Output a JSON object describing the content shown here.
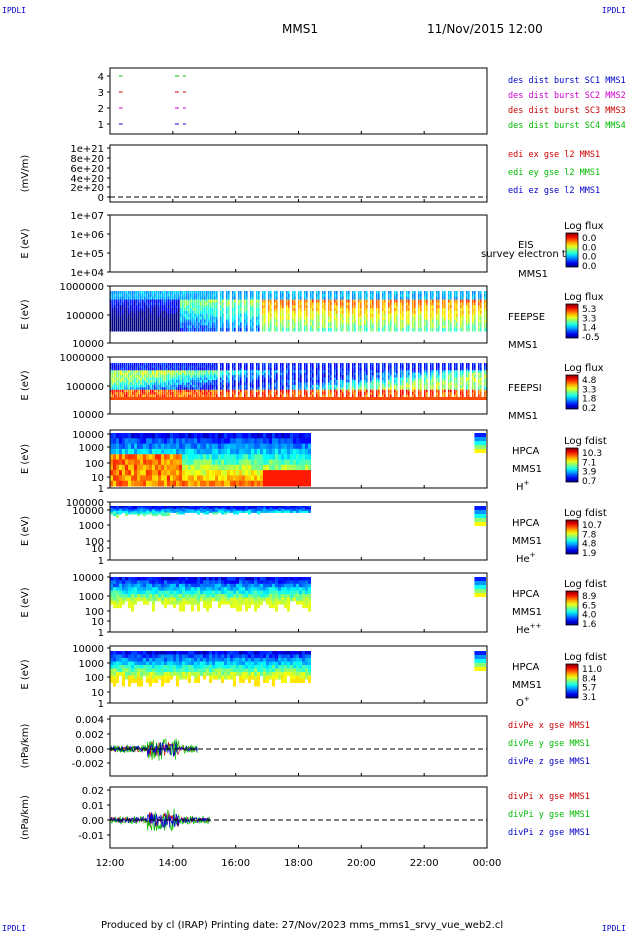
{
  "header": {
    "corner_tl": "IPDLI",
    "corner_tr": "IPDLI",
    "corner_bl": "IPDLI",
    "corner_br": "IPDLI",
    "spacecraft": "MMS1",
    "datetime": "11/Nov/2015 12:00"
  },
  "footer": {
    "text": "Produced by cl (IRAP)   Printing date: 27/Nov/2023   mms_mms1_srvy_vue_web2.cl"
  },
  "chart_data": [
    {
      "type": "line",
      "panel": "burst",
      "yticks": [
        "4",
        "3",
        "2",
        "1"
      ],
      "ylim": [
        0.5,
        4.5
      ],
      "legend": [
        {
          "label": "des dist burst SC1 MMS1",
          "color": "#0000cc"
        },
        {
          "label": "des dist burst SC2 MMS2",
          "color": "#cc00cc"
        },
        {
          "label": "des dist burst SC3 MMS3",
          "color": "#cc0000"
        },
        {
          "label": "des dist burst SC4 MMS4",
          "color": "#00bb00"
        }
      ],
      "series": [
        {
          "name": "des dist burst SC1 MMS1",
          "y": 1,
          "intervals": [
            [
              "12:17",
              "12:24"
            ],
            [
              "14:04",
              "14:25"
            ]
          ]
        },
        {
          "name": "des dist burst SC2 MMS2",
          "y": 2,
          "intervals": [
            [
              "12:17",
              "12:24"
            ],
            [
              "14:04",
              "14:25"
            ]
          ]
        },
        {
          "name": "des dist burst SC3 MMS3",
          "y": 3,
          "intervals": [
            [
              "12:17",
              "12:24"
            ],
            [
              "14:04",
              "14:25"
            ]
          ]
        },
        {
          "name": "des dist burst SC4 MMS4",
          "y": 4,
          "intervals": [
            [
              "12:17",
              "12:24"
            ],
            [
              "14:04",
              "14:25"
            ]
          ]
        }
      ]
    },
    {
      "type": "line",
      "panel": "edi",
      "ylabel": "(mV/m)",
      "yticks": [
        "1e+21",
        "8e+20",
        "6e+20",
        "4e+20",
        "2e+20",
        "0"
      ],
      "ylim": [
        0,
        1e+21
      ],
      "legend": [
        {
          "label": "edi ex gse l2 MMS1",
          "color": "#cc0000"
        },
        {
          "label": "edi ey gse l2 MMS1",
          "color": "#00bb00"
        },
        {
          "label": "edi ez gse l2 MMS1",
          "color": "#0000cc"
        }
      ]
    },
    {
      "type": "heatmap",
      "panel": "eis",
      "ylabel": "E (eV)",
      "yticks": [
        "1e+07",
        "1e+06",
        "1e+05",
        "1e+04"
      ],
      "ylog": true,
      "ylim": [
        10000.0,
        10000000.0
      ],
      "labels": [
        "EIS",
        "MMS1"
      ],
      "overlay_label": "survey electron to",
      "colorbar": {
        "title": "Log flux",
        "ticks": [
          "0.0",
          "0.0",
          "0.0",
          "0.0"
        ]
      }
    },
    {
      "type": "heatmap",
      "panel": "feeps_e",
      "ylabel": "E (eV)",
      "yticks": [
        "1000000",
        "100000",
        "10000"
      ],
      "ylog": true,
      "ylim": [
        10000.0,
        1000000.0
      ],
      "labels": [
        "FEEPSE",
        "MMS1"
      ],
      "colorbar": {
        "title": "Log flux",
        "ticks": [
          "5.3",
          "3.3",
          "1.4",
          "-0.5"
        ]
      }
    },
    {
      "type": "heatmap",
      "panel": "feeps_i",
      "ylabel": "E (eV)",
      "yticks": [
        "1000000",
        "100000",
        "10000"
      ],
      "ylog": true,
      "ylim": [
        10000.0,
        1000000.0
      ],
      "labels": [
        "FEEPSI",
        "MMS1"
      ],
      "colorbar": {
        "title": "Log flux",
        "ticks": [
          "4.8",
          "3.3",
          "1.8",
          "0.2"
        ]
      }
    },
    {
      "type": "heatmap",
      "panel": "hpca_h",
      "ylabel": "E (eV)",
      "yticks": [
        "10000",
        "1000",
        "100",
        "10",
        "1"
      ],
      "ylog": true,
      "ylim": [
        1,
        30000
      ],
      "labels": [
        "HPCA",
        "MMS1"
      ],
      "species": "H",
      "species_sup": "+",
      "colorbar": {
        "title": "Log fdist",
        "ticks": [
          "10.3",
          "7.1",
          "3.9",
          "0.7"
        ]
      }
    },
    {
      "type": "heatmap",
      "panel": "hpca_he1",
      "ylabel": "E (eV)",
      "yticks": [
        "100000",
        "10000",
        "1000",
        "100",
        "10",
        "1"
      ],
      "ylog": true,
      "ylim": [
        1,
        100000
      ],
      "labels": [
        "HPCA",
        "MMS1"
      ],
      "species": "He",
      "species_sup": "+",
      "colorbar": {
        "title": "Log fdist",
        "ticks": [
          "10.7",
          "7.8",
          "4.8",
          "1.9"
        ]
      }
    },
    {
      "type": "heatmap",
      "panel": "hpca_he2",
      "ylabel": "E (eV)",
      "yticks": [
        "10000",
        "1000",
        "100",
        "10",
        "1"
      ],
      "ylog": true,
      "ylim": [
        1,
        30000
      ],
      "labels": [
        "HPCA",
        "MMS1"
      ],
      "species": "He",
      "species_sup": "++",
      "colorbar": {
        "title": "Log fdist",
        "ticks": [
          "8.9",
          "6.5",
          "4.0",
          "1.6"
        ]
      }
    },
    {
      "type": "heatmap",
      "panel": "hpca_o",
      "ylabel": "E (eV)",
      "yticks": [
        "10000",
        "1000",
        "100",
        "10",
        "1"
      ],
      "ylog": true,
      "ylim": [
        1,
        30000
      ],
      "labels": [
        "HPCA",
        "MMS1"
      ],
      "species": "O",
      "species_sup": "+",
      "colorbar": {
        "title": "Log fdist",
        "ticks": [
          "11.0",
          "8.4",
          "5.7",
          "3.1"
        ]
      }
    },
    {
      "type": "line",
      "panel": "divpe",
      "ylabel": "(nPa/km)",
      "yticks": [
        "0.004",
        "0.002",
        "0.000",
        "-0.002"
      ],
      "ylim": [
        -0.0033,
        0.0043
      ],
      "legend": [
        {
          "label": "divPe x gse MMS1",
          "color": "#cc0000"
        },
        {
          "label": "divPe y gse MMS1",
          "color": "#00bb00"
        },
        {
          "label": "divPe z gse MMS1",
          "color": "#0000cc"
        }
      ]
    },
    {
      "type": "line",
      "panel": "divpi",
      "ylabel": "(nPa/km)",
      "yticks": [
        "0.02",
        "0.01",
        "0.00",
        "-0.01"
      ],
      "ylim": [
        -0.0165,
        0.0225
      ],
      "legend": [
        {
          "label": "divPi x gse MMS1",
          "color": "#cc0000"
        },
        {
          "label": "divPi y gse MMS1",
          "color": "#00bb00"
        },
        {
          "label": "divPi z gse MMS1",
          "color": "#0000cc"
        }
      ]
    }
  ],
  "xaxis": {
    "ticks": [
      "12:00",
      "14:00",
      "16:00",
      "18:00",
      "20:00",
      "22:00",
      "00:00"
    ]
  }
}
